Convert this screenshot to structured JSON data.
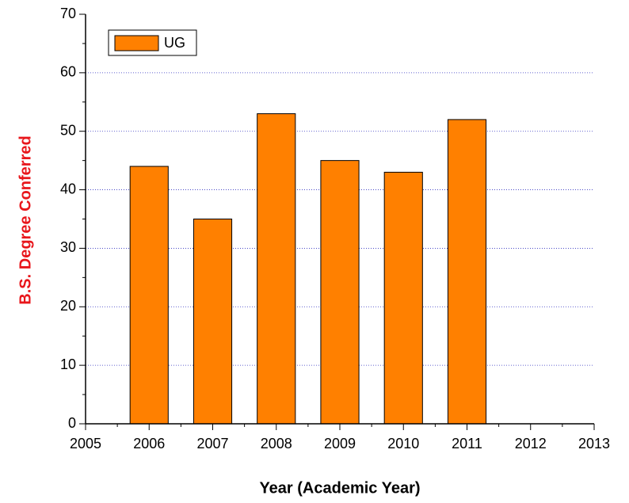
{
  "chart_data": {
    "type": "bar",
    "x_label": "Year (Academic Year)",
    "y_label": "B.S. Degree Conferred",
    "x": [
      2006,
      2007,
      2008,
      2009,
      2010,
      2011
    ],
    "series": [
      {
        "name": "UG",
        "color": "#ff8000",
        "values": [
          44,
          35,
          53,
          45,
          43,
          52
        ]
      }
    ],
    "xlim": [
      2005,
      2013
    ],
    "xticks": [
      2005,
      2006,
      2007,
      2008,
      2009,
      2010,
      2011,
      2012,
      2013
    ],
    "ylim": [
      0,
      70
    ],
    "yticks": [
      0,
      10,
      20,
      30,
      40,
      50,
      60,
      70
    ],
    "grid": true,
    "legend": "upper left"
  }
}
